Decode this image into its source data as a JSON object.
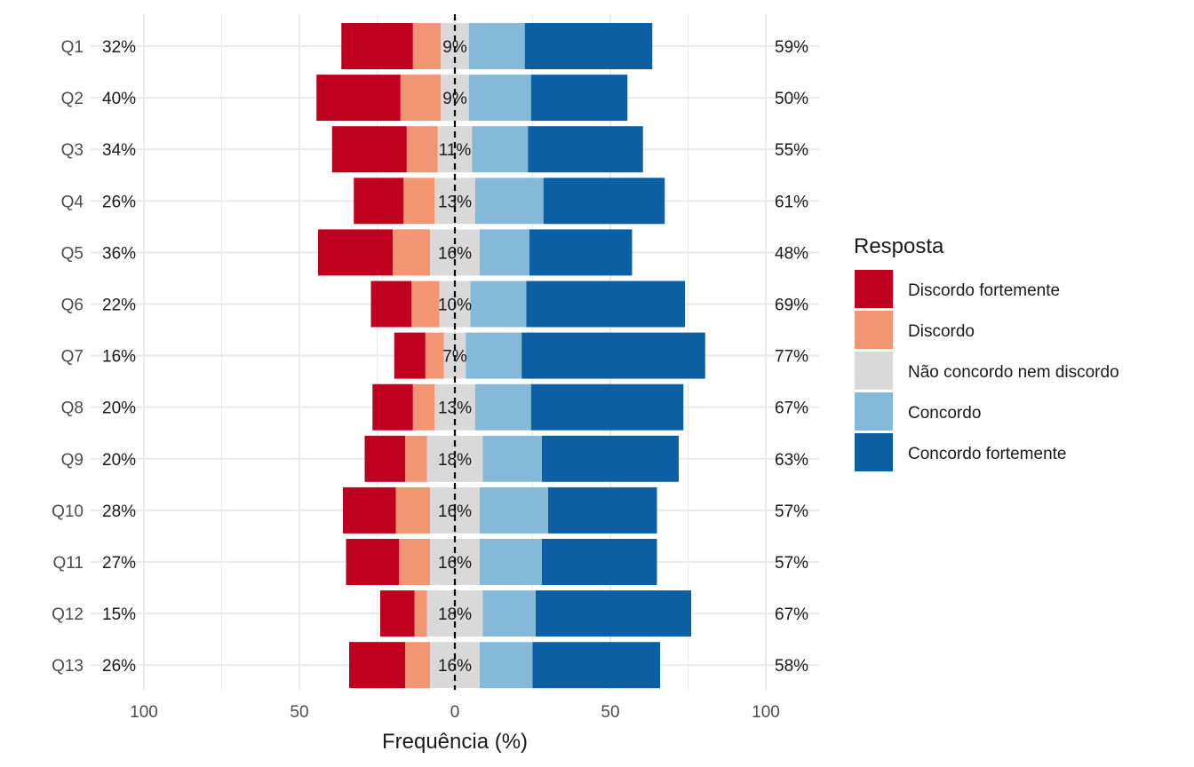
{
  "chart_data": {
    "type": "bar",
    "orientation": "horizontal-diverging-stacked",
    "xlabel": "Frequência (%)",
    "ylabel": "",
    "xlim": [
      -100,
      100
    ],
    "x_ticks": [
      -100,
      -50,
      0,
      50,
      100
    ],
    "x_tick_labels": [
      "100",
      "50",
      "0",
      "50",
      "100"
    ],
    "grid": true,
    "legend": {
      "title": "Resposta",
      "placement": "right",
      "entries": [
        {
          "name": "Discordo fortemente",
          "color": "#c0001f"
        },
        {
          "name": "Discordo",
          "color": "#f19572"
        },
        {
          "name": "Não concordo nem discordo",
          "color": "#d9d9d9"
        },
        {
          "name": "Concordo",
          "color": "#84b9d9"
        },
        {
          "name": "Concordo fortemente",
          "color": "#0d5fa3"
        }
      ]
    },
    "categories": [
      "Q1",
      "Q2",
      "Q3",
      "Q4",
      "Q5",
      "Q6",
      "Q7",
      "Q8",
      "Q9",
      "Q10",
      "Q11",
      "Q12",
      "Q13"
    ],
    "series": [
      {
        "name": "Discordo fortemente",
        "values": [
          23,
          27,
          24,
          16,
          24,
          13,
          10,
          13,
          13,
          17,
          17,
          11,
          18
        ]
      },
      {
        "name": "Discordo",
        "values": [
          9,
          13,
          10,
          10,
          12,
          9,
          6,
          7,
          7,
          11,
          10,
          4,
          8
        ]
      },
      {
        "name": "Não concordo nem discordo",
        "values": [
          9,
          9,
          11,
          13,
          16,
          10,
          7,
          13,
          18,
          16,
          16,
          18,
          16
        ]
      },
      {
        "name": "Concordo",
        "values": [
          18,
          20,
          18,
          22,
          16,
          18,
          18,
          18,
          19,
          22,
          20,
          17,
          17
        ]
      },
      {
        "name": "Concordo fortemente",
        "values": [
          41,
          31,
          37,
          39,
          33,
          51,
          59,
          49,
          44,
          35,
          37,
          50,
          41
        ]
      }
    ],
    "left_labels": [
      "32%",
      "40%",
      "34%",
      "26%",
      "36%",
      "22%",
      "16%",
      "20%",
      "20%",
      "28%",
      "27%",
      "15%",
      "26%"
    ],
    "center_labels": [
      "9%",
      "9%",
      "11%",
      "13%",
      "16%",
      "10%",
      "7%",
      "13%",
      "18%",
      "16%",
      "16%",
      "18%",
      "16%"
    ],
    "right_labels": [
      "59%",
      "50%",
      "55%",
      "61%",
      "48%",
      "69%",
      "77%",
      "67%",
      "63%",
      "57%",
      "57%",
      "67%",
      "58%"
    ]
  }
}
